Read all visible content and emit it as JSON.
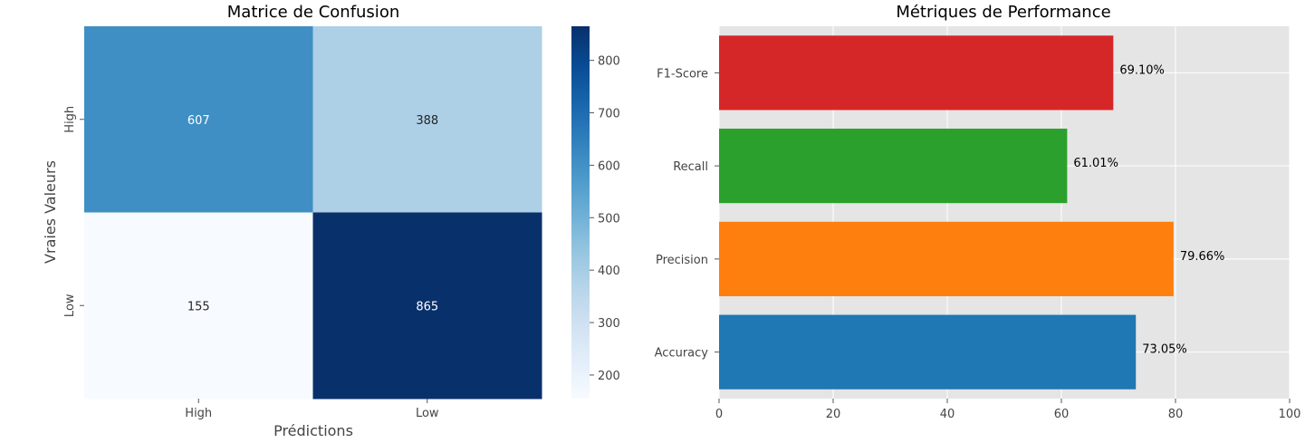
{
  "chart_data": [
    {
      "type": "heatmap",
      "title": "Matrice de Confusion",
      "xlabel": "Prédictions",
      "ylabel": "Vraies Valeurs",
      "x_categories": [
        "High",
        "Low"
      ],
      "y_categories": [
        "High",
        "Low"
      ],
      "values": [
        [
          607,
          388
        ],
        [
          155,
          865
        ]
      ],
      "colormap": "Blues",
      "colorbar": {
        "range": [
          155,
          865
        ],
        "ticks": [
          200,
          300,
          400,
          500,
          600,
          700,
          800
        ]
      }
    },
    {
      "type": "bar",
      "orientation": "horizontal",
      "title": "Métriques de Performance",
      "categories": [
        "Accuracy",
        "Precision",
        "Recall",
        "F1-Score"
      ],
      "values": [
        73.05,
        79.66,
        61.01,
        69.1
      ],
      "value_labels": [
        "73.05%",
        "79.66%",
        "61.01%",
        "69.10%"
      ],
      "colors": [
        "#1f77b4",
        "#ff7f0e",
        "#2ca02c",
        "#d62728"
      ],
      "xlim": [
        0,
        100
      ],
      "xticks": [
        0,
        20,
        40,
        60,
        80,
        100
      ],
      "grid": true,
      "background": "#e5e5e5"
    }
  ]
}
